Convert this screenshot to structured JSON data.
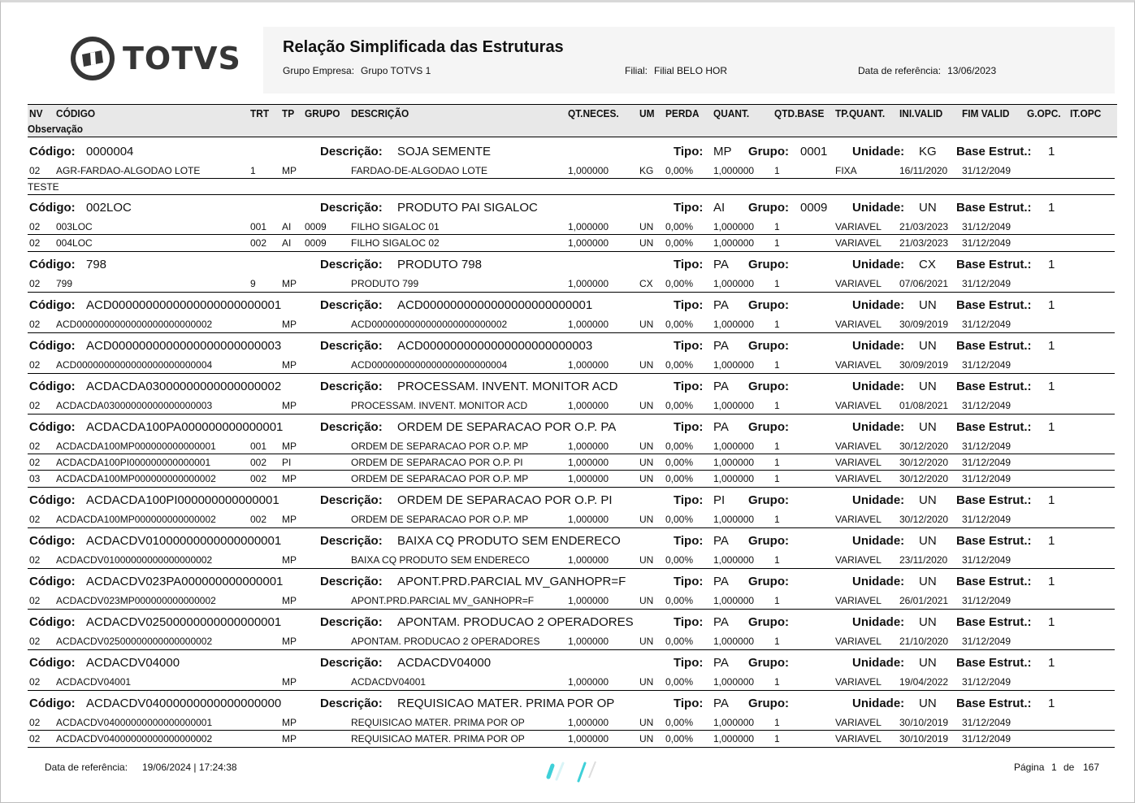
{
  "header": {
    "logo": "TOTVS",
    "title": "Relação Simplificada das Estruturas",
    "grupo_label": "Grupo Empresa:",
    "grupo_value": "Grupo TOTVS 1",
    "filial_label": "Filial:",
    "filial_value": "Filial BELO HOR",
    "data_label": "Data de referência:",
    "data_value": "13/06/2023"
  },
  "columns": [
    "NV",
    "CÓDIGO",
    "TRT",
    "TP",
    "GRUPO",
    "DESCRIÇÃO",
    "QT.NECES.",
    "UM",
    "PERDA",
    "QUANT.",
    "QTD.BASE",
    "TP.QUANT.",
    "INI.VALID",
    "FIM VALID",
    "G.OPC.",
    "IT.OPC",
    "Observação"
  ],
  "labels": {
    "codigo": "Código:",
    "descricao": "Descrição:",
    "tipo": "Tipo:",
    "grupo": "Grupo:",
    "unidade": "Unidade:",
    "base": "Base Estrut.:"
  },
  "groups": [
    {
      "codigo": "0000004",
      "descricao": "SOJA SEMENTE",
      "tipo": "MP",
      "grupo": "0001",
      "unidade": "KG",
      "base": "1",
      "items": [
        [
          "02",
          "AGR-FARDAO-ALGODAO LOTE",
          "1",
          "MP",
          "",
          "FARDAO-DE-ALGODAO LOTE",
          "1,000000",
          "KG",
          "0,00%",
          "1,000000",
          "1",
          "FIXA",
          "16/11/2020",
          "31/12/2049"
        ]
      ],
      "obs": "TESTE"
    },
    {
      "codigo": "002LOC",
      "descricao": "PRODUTO PAI SIGALOC",
      "tipo": "AI",
      "grupo": "0009",
      "unidade": "UN",
      "base": "1",
      "items": [
        [
          "02",
          "003LOC",
          "001",
          "AI",
          "0009",
          "FILHO SIGALOC 01",
          "1,000000",
          "UN",
          "0,00%",
          "1,000000",
          "1",
          "VARIAVEL",
          "21/03/2023",
          "31/12/2049"
        ],
        [
          "02",
          "004LOC",
          "002",
          "AI",
          "0009",
          "FILHO SIGALOC 02",
          "1,000000",
          "UN",
          "0,00%",
          "1,000000",
          "1",
          "VARIAVEL",
          "21/03/2023",
          "31/12/2049"
        ]
      ]
    },
    {
      "codigo": "798",
      "descricao": "PRODUTO 798",
      "tipo": "PA",
      "grupo": "",
      "unidade": "CX",
      "base": "1",
      "items": [
        [
          "02",
          "799",
          "9",
          "MP",
          "",
          "PRODUTO 799",
          "1,000000",
          "CX",
          "0,00%",
          "1,000000",
          "1",
          "VARIAVEL",
          "07/06/2021",
          "31/12/2049"
        ]
      ]
    },
    {
      "codigo": "ACD0000000000000000000000001",
      "descricao": "ACD0000000000000000000000001",
      "tipo": "PA",
      "grupo": "",
      "unidade": "UN",
      "base": "1",
      "items": [
        [
          "02",
          "ACD0000000000000000000000002",
          "",
          "MP",
          "",
          "ACD0000000000000000000000002",
          "1,000000",
          "UN",
          "0,00%",
          "1,000000",
          "1",
          "VARIAVEL",
          "30/09/2019",
          "31/12/2049"
        ]
      ]
    },
    {
      "codigo": "ACD0000000000000000000000003",
      "descricao": "ACD0000000000000000000000003",
      "tipo": "PA",
      "grupo": "",
      "unidade": "UN",
      "base": "1",
      "items": [
        [
          "02",
          "ACD0000000000000000000000004",
          "",
          "MP",
          "",
          "ACD0000000000000000000000004",
          "1,000000",
          "UN",
          "0,00%",
          "1,000000",
          "1",
          "VARIAVEL",
          "30/09/2019",
          "31/12/2049"
        ]
      ]
    },
    {
      "codigo": "ACDACDA03000000000000000002",
      "descricao": "PROCESSAM. INVENT. MONITOR ACD",
      "tipo": "PA",
      "grupo": "",
      "unidade": "UN",
      "base": "1",
      "items": [
        [
          "02",
          "ACDACDA03000000000000000003",
          "",
          "MP",
          "",
          "PROCESSAM. INVENT. MONITOR ACD",
          "1,000000",
          "UN",
          "0,00%",
          "1,000000",
          "1",
          "VARIAVEL",
          "01/08/2021",
          "31/12/2049"
        ]
      ]
    },
    {
      "codigo": "ACDACDA100PA000000000000001",
      "descricao": "ORDEM DE SEPARACAO POR O.P. PA",
      "tipo": "PA",
      "grupo": "",
      "unidade": "UN",
      "base": "1",
      "items": [
        [
          "02",
          "ACDACDA100MP000000000000001",
          "001",
          "MP",
          "",
          "ORDEM DE SEPARACAO POR O.P. MP",
          "1,000000",
          "UN",
          "0,00%",
          "1,000000",
          "1",
          "VARIAVEL",
          "30/12/2020",
          "31/12/2049"
        ],
        [
          "02",
          "ACDACDA100PI000000000000001",
          "002",
          "PI",
          "",
          "ORDEM DE SEPARACAO POR O.P. PI",
          "1,000000",
          "UN",
          "0,00%",
          "1,000000",
          "1",
          "VARIAVEL",
          "30/12/2020",
          "31/12/2049"
        ],
        [
          "03",
          "ACDACDA100MP000000000000002",
          "002",
          "MP",
          "",
          "ORDEM DE SEPARACAO POR O.P. MP",
          "1,000000",
          "UN",
          "0,00%",
          "1,000000",
          "1",
          "VARIAVEL",
          "30/12/2020",
          "31/12/2049"
        ]
      ]
    },
    {
      "codigo": "ACDACDA100PI000000000000001",
      "descricao": "ORDEM DE SEPARACAO POR O.P. PI",
      "tipo": "PI",
      "grupo": "",
      "unidade": "UN",
      "base": "1",
      "items": [
        [
          "02",
          "ACDACDA100MP000000000000002",
          "002",
          "MP",
          "",
          "ORDEM DE SEPARACAO POR O.P. MP",
          "1,000000",
          "UN",
          "0,00%",
          "1,000000",
          "1",
          "VARIAVEL",
          "30/12/2020",
          "31/12/2049"
        ]
      ]
    },
    {
      "codigo": "ACDACDV01000000000000000001",
      "descricao": "BAIXA CQ PRODUTO SEM ENDERECO",
      "tipo": "PA",
      "grupo": "",
      "unidade": "UN",
      "base": "1",
      "items": [
        [
          "02",
          "ACDACDV01000000000000000002",
          "",
          "MP",
          "",
          "BAIXA CQ PRODUTO SEM ENDERECO",
          "1,000000",
          "UN",
          "0,00%",
          "1,000000",
          "1",
          "VARIAVEL",
          "23/11/2020",
          "31/12/2049"
        ]
      ]
    },
    {
      "codigo": "ACDACDV023PA000000000000001",
      "descricao": "APONT.PRD.PARCIAL MV_GANHOPR=F",
      "tipo": "PA",
      "grupo": "",
      "unidade": "UN",
      "base": "1",
      "items": [
        [
          "02",
          "ACDACDV023MP000000000000002",
          "",
          "MP",
          "",
          "APONT.PRD.PARCIAL MV_GANHOPR=F",
          "1,000000",
          "UN",
          "0,00%",
          "1,000000",
          "1",
          "VARIAVEL",
          "26/01/2021",
          "31/12/2049"
        ]
      ]
    },
    {
      "codigo": "ACDACDV02500000000000000001",
      "descricao": "APONTAM. PRODUCAO 2 OPERADORES",
      "tipo": "PA",
      "grupo": "",
      "unidade": "UN",
      "base": "1",
      "items": [
        [
          "02",
          "ACDACDV02500000000000000002",
          "",
          "MP",
          "",
          "APONTAM. PRODUCAO 2 OPERADORES",
          "1,000000",
          "UN",
          "0,00%",
          "1,000000",
          "1",
          "VARIAVEL",
          "21/10/2020",
          "31/12/2049"
        ]
      ]
    },
    {
      "codigo": "ACDACDV04000",
      "descricao": "ACDACDV04000",
      "tipo": "PA",
      "grupo": "",
      "unidade": "UN",
      "base": "1",
      "items": [
        [
          "02",
          "ACDACDV04001",
          "",
          "MP",
          "",
          "ACDACDV04001",
          "1,000000",
          "UN",
          "0,00%",
          "1,000000",
          "1",
          "VARIAVEL",
          "19/04/2022",
          "31/12/2049"
        ]
      ]
    },
    {
      "codigo": "ACDACDV04000000000000000000",
      "descricao": "REQUISICAO MATER. PRIMA POR OP",
      "tipo": "PA",
      "grupo": "",
      "unidade": "UN",
      "base": "1",
      "items": [
        [
          "02",
          "ACDACDV04000000000000000001",
          "",
          "MP",
          "",
          "REQUISICAO MATER. PRIMA POR OP",
          "1,000000",
          "UN",
          "0,00%",
          "1,000000",
          "1",
          "VARIAVEL",
          "30/10/2019",
          "31/12/2049"
        ],
        [
          "02",
          "ACDACDV04000000000000000002",
          "",
          "MP",
          "",
          "REQUISICAO MATER. PRIMA POR OP",
          "1,000000",
          "UN",
          "0,00%",
          "1,000000",
          "1",
          "VARIAVEL",
          "30/10/2019",
          "31/12/2049"
        ]
      ]
    }
  ],
  "footer": {
    "data_label": "Data de referência:",
    "data_value": "19/06/2024 | 17:24:38",
    "pagina_label": "Página",
    "pagina": "1",
    "de_label": "de",
    "total": "167"
  },
  "colors": {
    "logo": "#363636",
    "accent": "#3fd0d8",
    "header_bg": "#f5f5f5",
    "colbar_bg": "#e8e8e8"
  }
}
